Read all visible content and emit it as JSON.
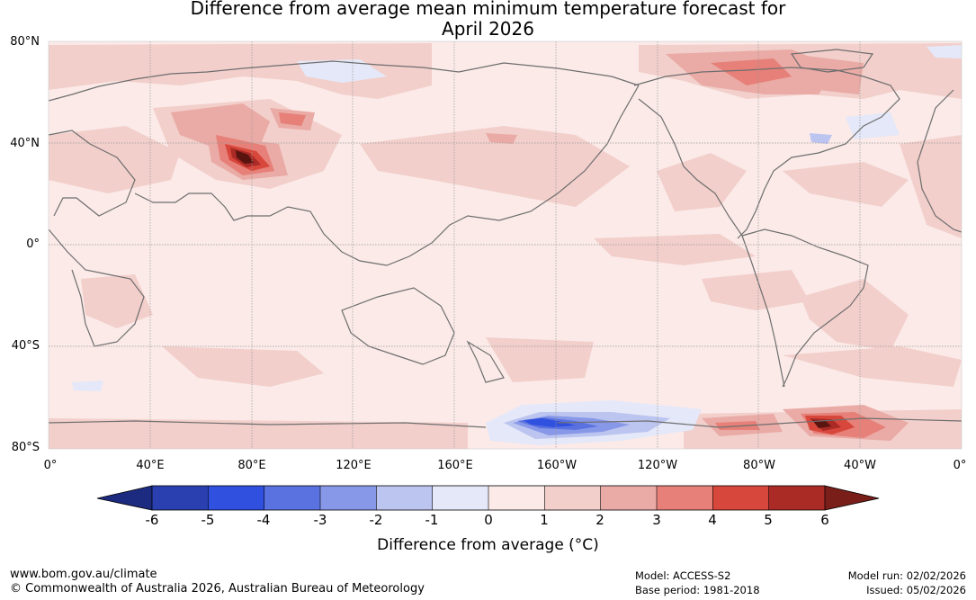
{
  "title": {
    "line1": "Difference from average mean minimum temperature forecast for",
    "line2": "April 2026"
  },
  "map": {
    "lat_labels": [
      "80°N",
      "40°N",
      "0°",
      "40°S",
      "80°S"
    ],
    "lon_labels": [
      "0°",
      "40°E",
      "80°E",
      "120°E",
      "160°E",
      "160°W",
      "120°W",
      "80°W",
      "40°W",
      "0°"
    ],
    "background_color": "#fbeae8",
    "coast_color": "#6e6e6e"
  },
  "colorbar": {
    "ticks": [
      "-6",
      "-5",
      "-4",
      "-3",
      "-2",
      "-1",
      "0",
      "1",
      "2",
      "3",
      "4",
      "5",
      "6"
    ],
    "colors": [
      "#2a3fb0",
      "#3050e0",
      "#5a72e0",
      "#8898e8",
      "#bcc4f0",
      "#e4e8f8",
      "#fbeae8",
      "#f2cfcb",
      "#eaaaa5",
      "#e68078",
      "#d8473c",
      "#aa2a25"
    ],
    "under_color": "#1c2a80",
    "over_color": "#7a1e1a",
    "label": "Difference from average (°C)"
  },
  "footer": {
    "url": "www.bom.gov.au/climate",
    "copyright": "© Commonwealth of Australia 2026, Australian Bureau of Meteorology",
    "model": "Model: ACCESS-S2",
    "base_period": "Base period: 1981-2018",
    "model_run": "Model run: 02/02/2026",
    "issued": "Issued: 05/02/2026"
  }
}
